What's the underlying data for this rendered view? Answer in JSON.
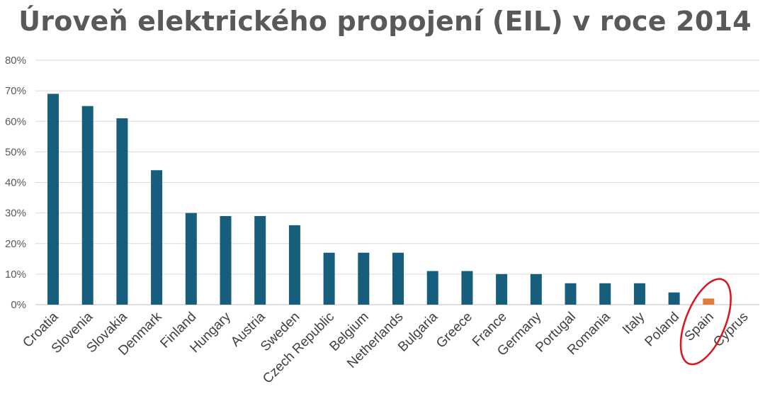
{
  "chart_data": {
    "type": "bar",
    "title": "Úroveň elektrického propojení (EIL) v roce 2014",
    "xlabel": "",
    "ylabel": "",
    "ylim": [
      0,
      80
    ],
    "y_ticks": [
      "0%",
      "10%",
      "20%",
      "30%",
      "40%",
      "50%",
      "60%",
      "70%",
      "80%"
    ],
    "grid": true,
    "legend": "none",
    "categories": [
      "Croatia",
      "Slovenia",
      "Slovakia",
      "Denmark",
      "Finland",
      "Hungary",
      "Austria",
      "Sweden",
      "Czech Republic",
      "Belgium",
      "Netherlands",
      "Bulgaria",
      "Greece",
      "France",
      "Germany",
      "Portugal",
      "Romania",
      "Italy",
      "Poland",
      "Spain",
      "Cyprus"
    ],
    "values": [
      69,
      65,
      61,
      44,
      30,
      29,
      29,
      26,
      17,
      17,
      17,
      11,
      11,
      10,
      10,
      7,
      7,
      7,
      4,
      2,
      0
    ],
    "colors": {
      "bar": "#175e7c",
      "highlight_bar": "#e07b39",
      "highlight_circle": "#d9141c",
      "grid": "#d9d9d9",
      "axis": "#bfbfbf"
    },
    "highlight": {
      "category": "Spain",
      "annotation": "red-circle"
    }
  }
}
